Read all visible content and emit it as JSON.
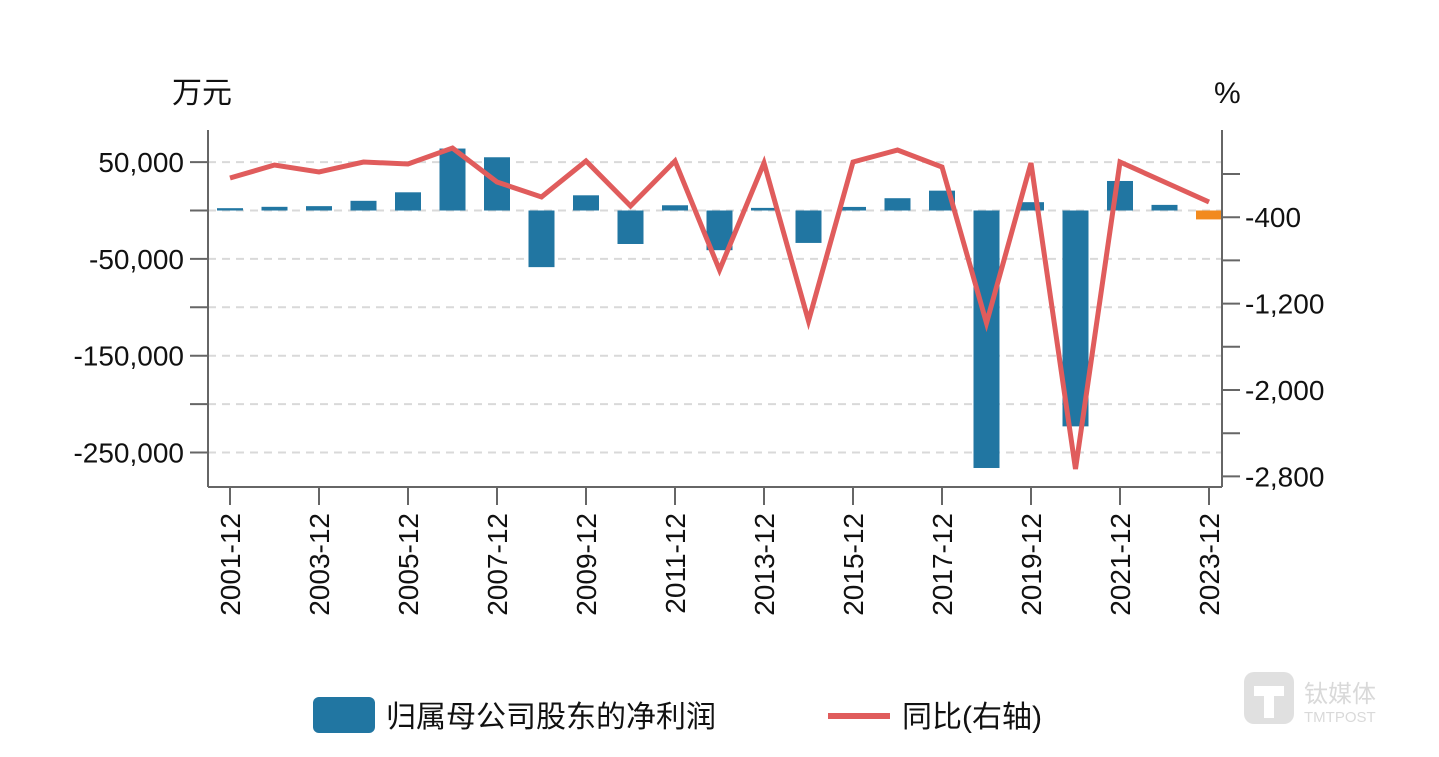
{
  "chart_data": {
    "type": "bar+line",
    "left_axis": {
      "unit": "万元",
      "ylim": [
        -270000,
        80000
      ],
      "tick_labels": [
        "50,000",
        "-50,000",
        "-150,000",
        "-250,000"
      ],
      "tick_values": [
        50000,
        -50000,
        -150000,
        -250000
      ],
      "minor_ticks": [
        0,
        -100000,
        -200000
      ]
    },
    "right_axis": {
      "unit": "%",
      "ylim": [
        -3100,
        500
      ],
      "tick_labels": [
        "-400",
        "-1,200",
        "-2,000",
        "-2,800"
      ],
      "tick_values": [
        -400,
        -1200,
        -2000,
        -2800
      ],
      "minor_ticks": [
        0,
        -800,
        -1600,
        -2400
      ]
    },
    "categories": [
      "2001-12",
      "2002-12",
      "2003-12",
      "2004-12",
      "2005-12",
      "2006-12",
      "2007-12",
      "2008-12",
      "2009-12",
      "2010-12",
      "2011-12",
      "2012-12",
      "2013-12",
      "2014-12",
      "2015-12",
      "2016-12",
      "2017-12",
      "2018-12",
      "2019-12",
      "2020-12",
      "2021-12",
      "2022-12",
      "2023-12"
    ],
    "x_tick_labels": [
      "2001-12",
      "2003-12",
      "2005-12",
      "2007-12",
      "2009-12",
      "2011-12",
      "2013-12",
      "2015-12",
      "2017-12",
      "2019-12",
      "2021-12",
      "2023-12"
    ],
    "grid": true,
    "legend_position": "bottom",
    "series": [
      {
        "name": "归属母公司股东的净利润",
        "type": "bar",
        "axis": "left",
        "color": "#2176a2",
        "highlight_last_color": "#f28a1e",
        "values": [
          2400,
          3800,
          4500,
          10000,
          18800,
          64000,
          55000,
          -58500,
          15700,
          -34600,
          5400,
          -41000,
          2700,
          -33500,
          3700,
          12700,
          20500,
          -266000,
          8600,
          -223000,
          30500,
          5800,
          -9200
        ]
      },
      {
        "name": "同比(右轴)",
        "type": "line",
        "axis": "right",
        "color": "#e05c5c",
        "values": [
          -37,
          83,
          19,
          111,
          93,
          240,
          -74,
          -213,
          120,
          -296,
          120,
          -889,
          102,
          -1361,
          111,
          222,
          65,
          -1380,
          102,
          -2732,
          111,
          -74,
          -259
        ]
      }
    ]
  },
  "watermark": {
    "text_cn": "钛媒体",
    "text_en": "TMTPOST"
  }
}
